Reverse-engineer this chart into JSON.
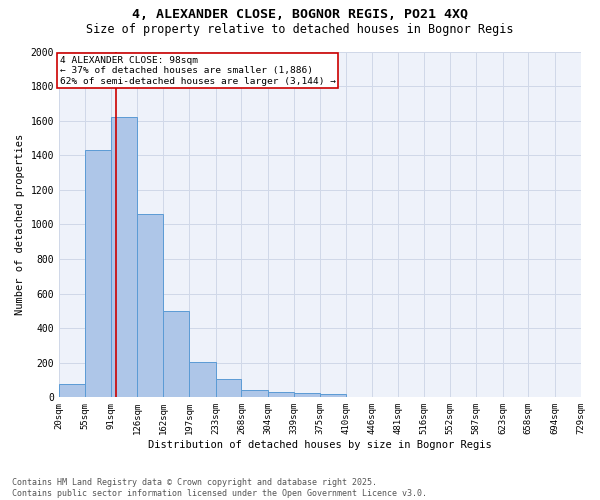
{
  "title1": "4, ALEXANDER CLOSE, BOGNOR REGIS, PO21 4XQ",
  "title2": "Size of property relative to detached houses in Bognor Regis",
  "xlabel": "Distribution of detached houses by size in Bognor Regis",
  "ylabel": "Number of detached properties",
  "bins": [
    20,
    55,
    91,
    126,
    162,
    197,
    233,
    268,
    304,
    339,
    375,
    410,
    446,
    481,
    516,
    552,
    587,
    623,
    658,
    694,
    729
  ],
  "counts": [
    80,
    1430,
    1620,
    1060,
    500,
    205,
    105,
    40,
    30,
    25,
    20,
    0,
    0,
    0,
    0,
    0,
    0,
    0,
    0,
    0
  ],
  "bar_color": "#aec6e8",
  "bar_edge_color": "#5b9bd5",
  "grid_color": "#d0d8e8",
  "background_color": "#eef2fa",
  "vline_x": 98,
  "vline_color": "#cc0000",
  "annotation_text": "4 ALEXANDER CLOSE: 98sqm\n← 37% of detached houses are smaller (1,886)\n62% of semi-detached houses are larger (3,144) →",
  "annotation_box_color": "#cc0000",
  "ylim": [
    0,
    2000
  ],
  "yticks": [
    0,
    200,
    400,
    600,
    800,
    1000,
    1200,
    1400,
    1600,
    1800,
    2000
  ],
  "tick_labels": [
    "20sqm",
    "55sqm",
    "91sqm",
    "126sqm",
    "162sqm",
    "197sqm",
    "233sqm",
    "268sqm",
    "304sqm",
    "339sqm",
    "375sqm",
    "410sqm",
    "446sqm",
    "481sqm",
    "516sqm",
    "552sqm",
    "587sqm",
    "623sqm",
    "658sqm",
    "694sqm",
    "729sqm"
  ],
  "footer_text": "Contains HM Land Registry data © Crown copyright and database right 2025.\nContains public sector information licensed under the Open Government Licence v3.0.",
  "title_fontsize": 9.5,
  "subtitle_fontsize": 8.5,
  "axis_label_fontsize": 7.5,
  "tick_fontsize": 6.5,
  "annotation_fontsize": 6.8,
  "footer_fontsize": 6
}
